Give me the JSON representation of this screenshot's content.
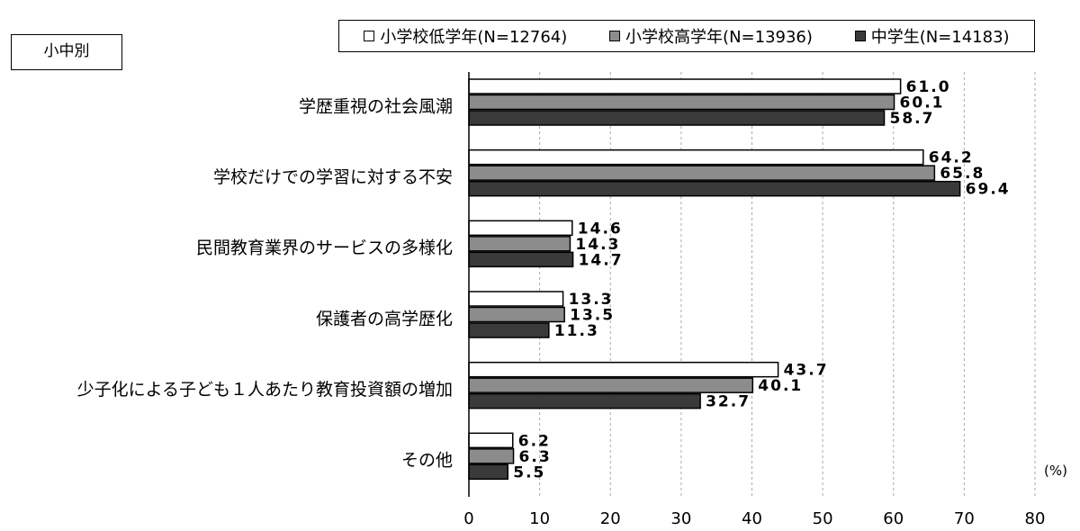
{
  "panel_label": "小中別",
  "unit_label": "(%)",
  "colors": {
    "series": [
      "#ffffff",
      "#8c8c8c",
      "#3a3a3a"
    ]
  },
  "chart_data": {
    "type": "bar",
    "orientation": "horizontal",
    "categories": [
      "学歴重視の社会風潮",
      "学校だけでの学習に対する不安",
      "民間教育業界のサービスの多様化",
      "保護者の高学歴化",
      "少子化による子ども１人あたり教育投資額の増加",
      "その他"
    ],
    "series": [
      {
        "name": "小学校低学年(N=12764)",
        "values": [
          61.0,
          64.2,
          14.6,
          13.3,
          43.7,
          6.2
        ]
      },
      {
        "name": "小学校高学年(N=13936)",
        "values": [
          60.1,
          65.8,
          14.3,
          13.5,
          40.1,
          6.3
        ]
      },
      {
        "name": "中学生(N=14183)",
        "values": [
          58.7,
          69.4,
          14.7,
          11.3,
          32.7,
          5.5
        ]
      }
    ],
    "xlim": [
      0,
      80
    ],
    "xticks": [
      0,
      10,
      20,
      30,
      40,
      50,
      60,
      70,
      80
    ],
    "grid": "vertical dashed",
    "legend_position": "top"
  }
}
